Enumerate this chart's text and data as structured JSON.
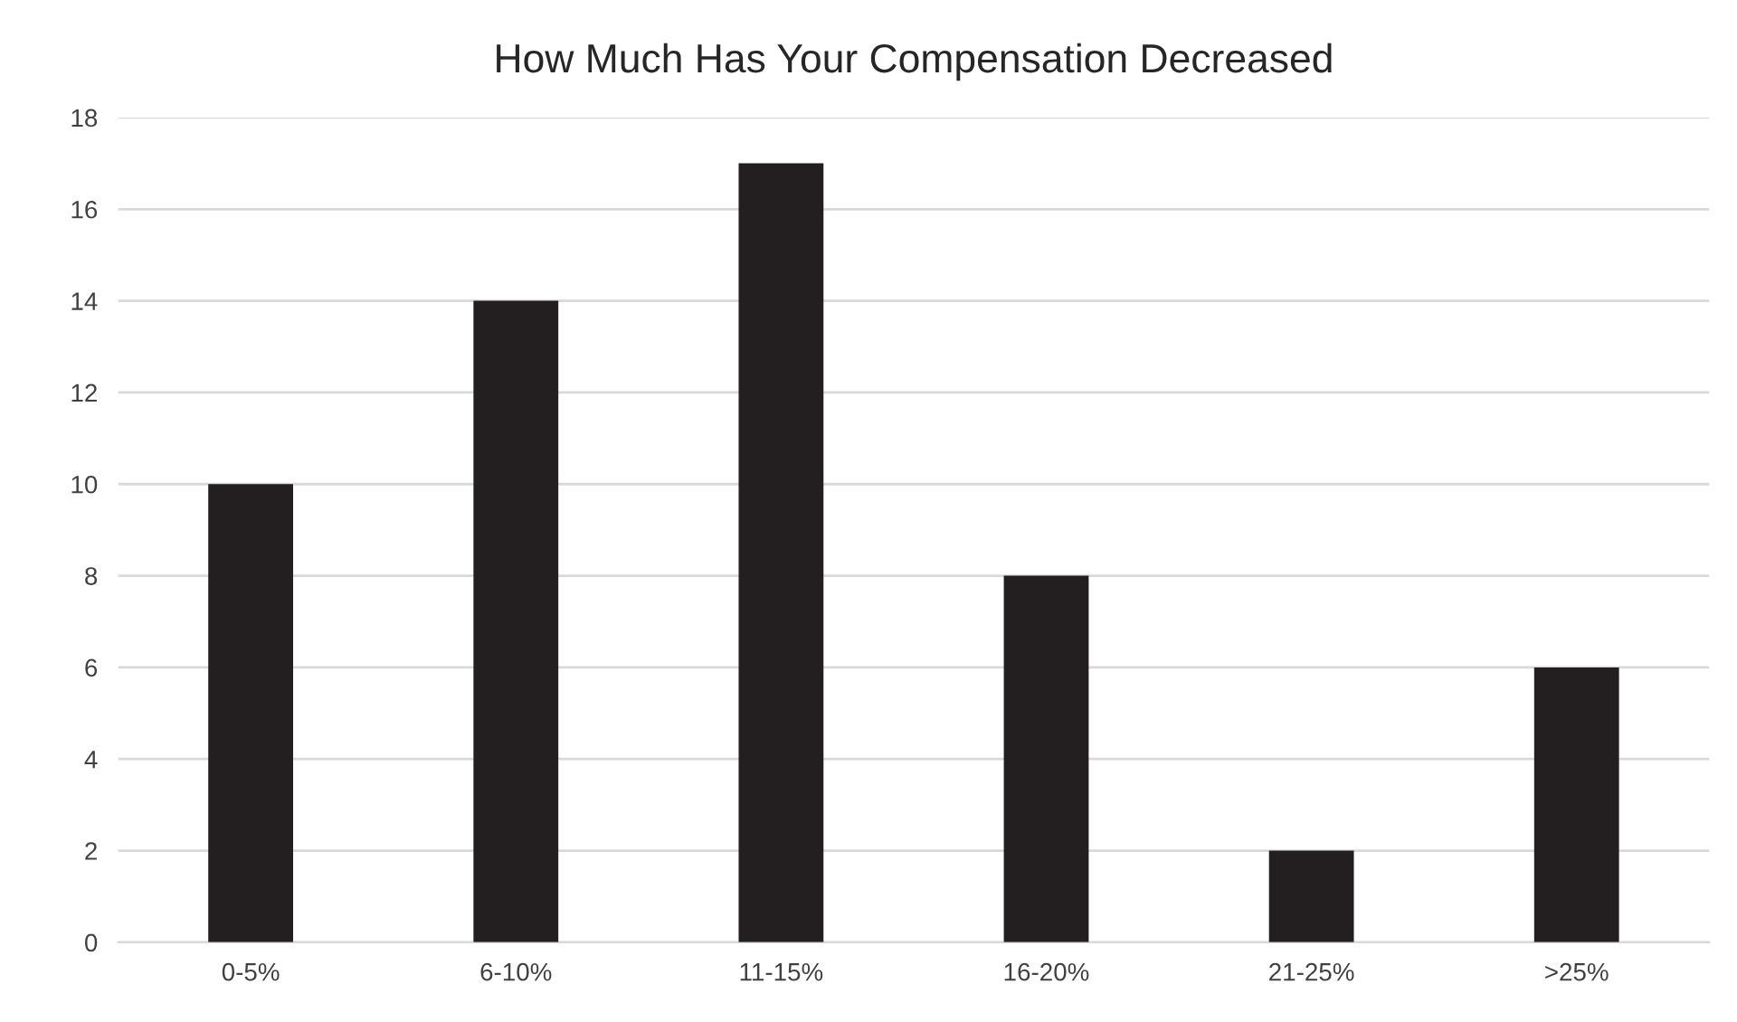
{
  "chart_data": {
    "type": "bar",
    "title": "How Much Has Your Compensation Decreased",
    "categories": [
      "0-5%",
      "6-10%",
      "11-15%",
      "16-20%",
      "21-25%",
      ">25%"
    ],
    "values": [
      10,
      14,
      17,
      8,
      2,
      6
    ],
    "color": "#231f20",
    "ylim": [
      0,
      18
    ],
    "yticks": [
      0,
      2,
      4,
      6,
      8,
      10,
      12,
      14,
      16,
      18
    ],
    "grid": "y",
    "legend": false
  }
}
